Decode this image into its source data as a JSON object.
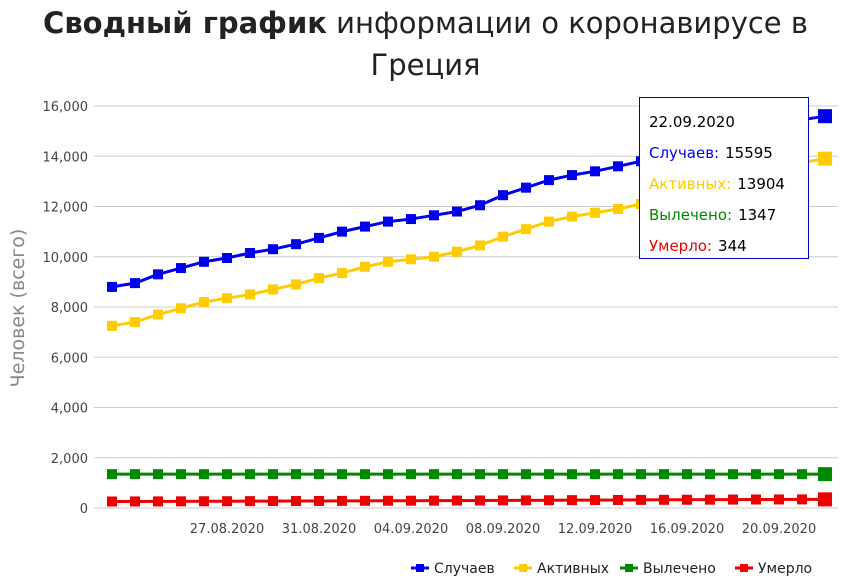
{
  "title": {
    "bold": "Сводный график",
    "normal_line1": " информации о коронавирусе в",
    "normal_line2": "Греция"
  },
  "chart_data": {
    "type": "line",
    "ylabel": "Человек (всего)",
    "xlabel": "",
    "ylim": [
      0,
      16000
    ],
    "yticks": [
      "0",
      "2,000",
      "4,000",
      "6,000",
      "8,000",
      "10,000",
      "12,000",
      "14,000",
      "16,000"
    ],
    "ytick_values": [
      0,
      2000,
      4000,
      6000,
      8000,
      10000,
      12000,
      14000,
      16000
    ],
    "grid": "horizontal",
    "legend_position": "bottom-right",
    "x": [
      "22.08.2020",
      "23.08.2020",
      "24.08.2020",
      "25.08.2020",
      "26.08.2020",
      "27.08.2020",
      "28.08.2020",
      "29.08.2020",
      "30.08.2020",
      "31.08.2020",
      "01.09.2020",
      "02.09.2020",
      "03.09.2020",
      "04.09.2020",
      "05.09.2020",
      "06.09.2020",
      "07.09.2020",
      "08.09.2020",
      "09.09.2020",
      "10.09.2020",
      "11.09.2020",
      "12.09.2020",
      "13.09.2020",
      "14.09.2020",
      "15.09.2020",
      "16.09.2020",
      "17.09.2020",
      "18.09.2020",
      "19.09.2020",
      "20.09.2020",
      "21.09.2020",
      "22.09.2020"
    ],
    "x_tick_labels": [
      "27.08.2020",
      "31.08.2020",
      "04.09.2020",
      "08.09.2020",
      "12.09.2020",
      "16.09.2020",
      "20.09.2020"
    ],
    "series": [
      {
        "name": "Случаев",
        "color": "#0000ee",
        "values": [
          8800,
          8950,
          9300,
          9550,
          9800,
          9950,
          10150,
          10300,
          10500,
          10750,
          11000,
          11200,
          11400,
          11500,
          11650,
          11800,
          12050,
          12450,
          12750,
          13050,
          13250,
          13400,
          13600,
          13800,
          14000,
          14250,
          14500,
          14750,
          14950,
          15150,
          15450,
          15595
        ]
      },
      {
        "name": "Активных",
        "color": "#ffcc00",
        "values": [
          7250,
          7400,
          7700,
          7950,
          8200,
          8350,
          8500,
          8700,
          8900,
          9150,
          9350,
          9600,
          9800,
          9900,
          10000,
          10200,
          10450,
          10800,
          11100,
          11400,
          11600,
          11750,
          11900,
          12100,
          12350,
          12600,
          12850,
          13100,
          13300,
          13500,
          13750,
          13904
        ]
      },
      {
        "name": "Вылечено",
        "color": "#008800",
        "values": [
          1347,
          1347,
          1347,
          1347,
          1347,
          1347,
          1347,
          1347,
          1347,
          1347,
          1347,
          1347,
          1347,
          1347,
          1347,
          1347,
          1347,
          1347,
          1347,
          1347,
          1347,
          1347,
          1347,
          1347,
          1347,
          1347,
          1347,
          1347,
          1347,
          1347,
          1347,
          1347
        ]
      },
      {
        "name": "Умерло",
        "color": "#ee0000",
        "values": [
          259,
          261,
          263,
          266,
          269,
          271,
          273,
          276,
          278,
          280,
          283,
          286,
          288,
          290,
          293,
          296,
          298,
          302,
          305,
          309,
          312,
          315,
          319,
          323,
          326,
          329,
          332,
          335,
          338,
          340,
          342,
          344
        ]
      }
    ]
  },
  "tooltip": {
    "date": "22.09.2020",
    "rows": [
      {
        "label": "Случаев:",
        "value": "15595",
        "color": "#0000ee"
      },
      {
        "label": "Активных:",
        "value": "13904",
        "color": "#ffcc00"
      },
      {
        "label": "Вылечено:",
        "value": "1347",
        "color": "#008800"
      },
      {
        "label": "Умерло:",
        "value": "344",
        "color": "#ee0000"
      }
    ]
  }
}
